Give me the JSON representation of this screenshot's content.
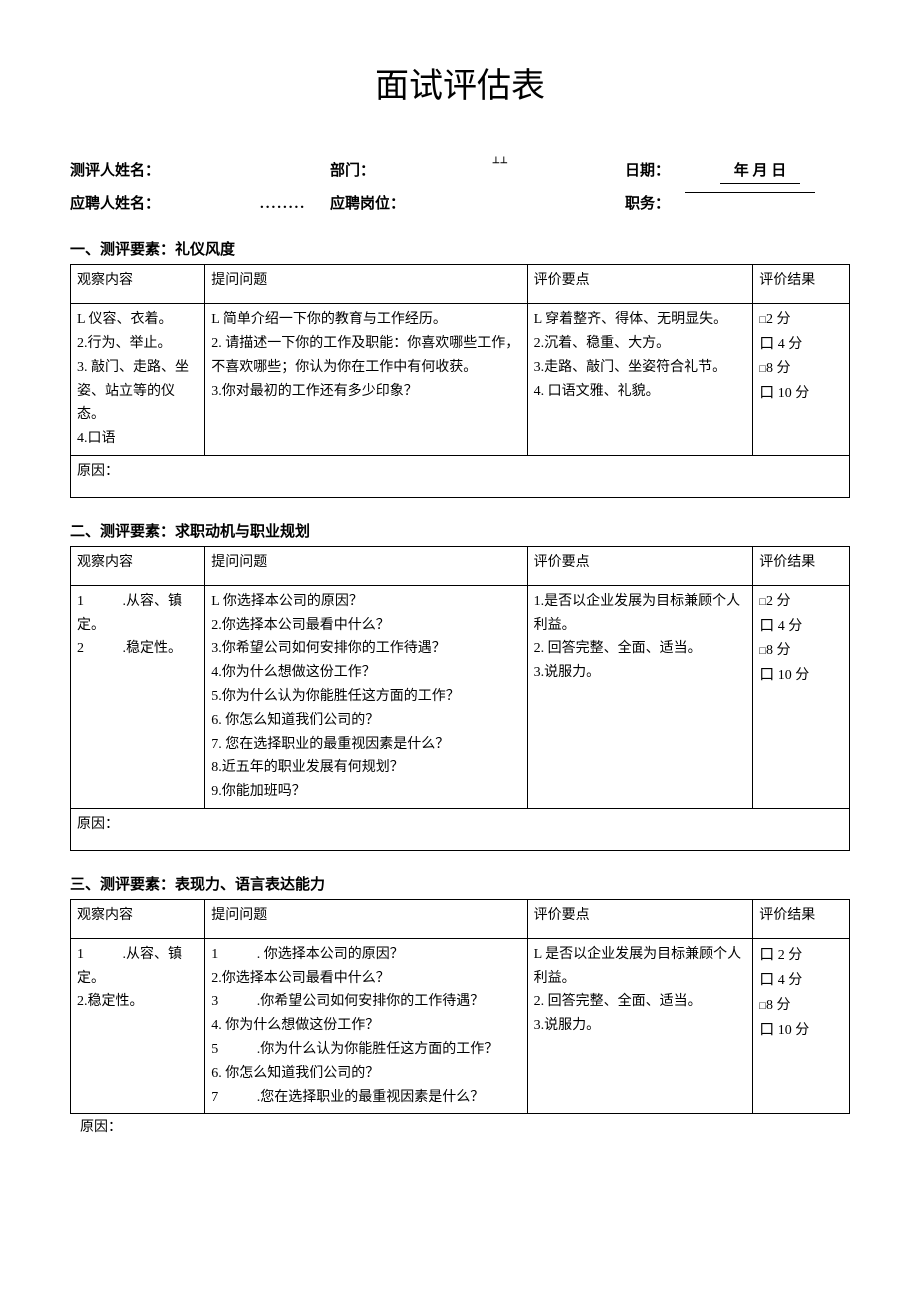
{
  "title": "面试评估表",
  "meta": {
    "row1": {
      "label1": "测评人姓名：",
      "label2": "部门：",
      "mark": "⊥⊥",
      "label3": "日期：",
      "date_value": "年 月 日"
    },
    "row2": {
      "label1": "应聘人姓名：",
      "dots": "........",
      "label2": "应聘岗位：",
      "label3": "职务："
    }
  },
  "headers": {
    "observe": "观察内容",
    "question": "提问问题",
    "points": "评价要点",
    "result": "评价结果"
  },
  "sections": [
    {
      "title": "一、测评要素：礼仪风度",
      "observe": "L 仪容、衣着。\n2.行为、举止。\n3. 敲门、走路、坐姿、站立等的仪态。\n4.口语",
      "question": "L 简单介绍一下你的教育与工作经历。\n2. 请描述一下你的工作及职能：你喜欢哪些工作，不喜欢哪些；你认为你在工作中有何收获。\n3.你对最初的工作还有多少印象？",
      "points": "L 穿着整齐、得体、无明显失。\n2.沉着、稳重、大方。\n3.走路、敲门、坐姿符合礼节。\n4. 口语文雅、礼貌。",
      "scores": [
        "□2 分",
        "口 4 分",
        "□8 分",
        "口 10 分"
      ],
      "score_sizes": [
        "small",
        "big",
        "small",
        "big"
      ],
      "reason": "原因：",
      "reason_in_table": true
    },
    {
      "title": "二、测评要素：求职动机与职业规划",
      "observe": "1           .从容、镇定。\n2           .稳定性。",
      "question": "L 你选择本公司的原因？\n2.你选择本公司最看中什么？\n3.你希望公司如何安排你的工作待遇？\n4.你为什么想做这份工作？\n5.你为什么认为你能胜任这方面的工作？\n6. 你怎么知道我们公司的？\n7. 您在选择职业的最重视因素是什么？\n8.近五年的职业发展有何规划？\n9.你能加班吗？",
      "points": "1.是否以企业发展为目标兼顾个人利益。\n2. 回答完整、全面、适当。\n3.说服力。",
      "scores": [
        "□2 分",
        "口 4 分",
        "□8 分",
        "口 10 分"
      ],
      "score_sizes": [
        "small",
        "big",
        "small",
        "big"
      ],
      "reason": "原因：",
      "reason_in_table": true
    },
    {
      "title": "三、测评要素：表现力、语言表达能力",
      "observe": "1           .从容、镇定。\n2.稳定性。",
      "question": "1           . 你选择本公司的原因？\n2.你选择本公司最看中什么？\n3           .你希望公司如何安排你的工作待遇？\n4. 你为什么想做这份工作？\n5           .你为什么认为你能胜任这方面的工作？\n6. 你怎么知道我们公司的？\n7           .您在选择职业的最重视因素是什么？",
      "points": "L 是否以企业发展为目标兼顾个人利益。\n2. 回答完整、全面、适当。\n3.说服力。",
      "scores": [
        "口 2 分",
        "口 4 分",
        "□8 分",
        "口 10 分"
      ],
      "score_sizes": [
        "big",
        "big",
        "small",
        "big"
      ],
      "reason": "原因：",
      "reason_in_table": false
    }
  ]
}
